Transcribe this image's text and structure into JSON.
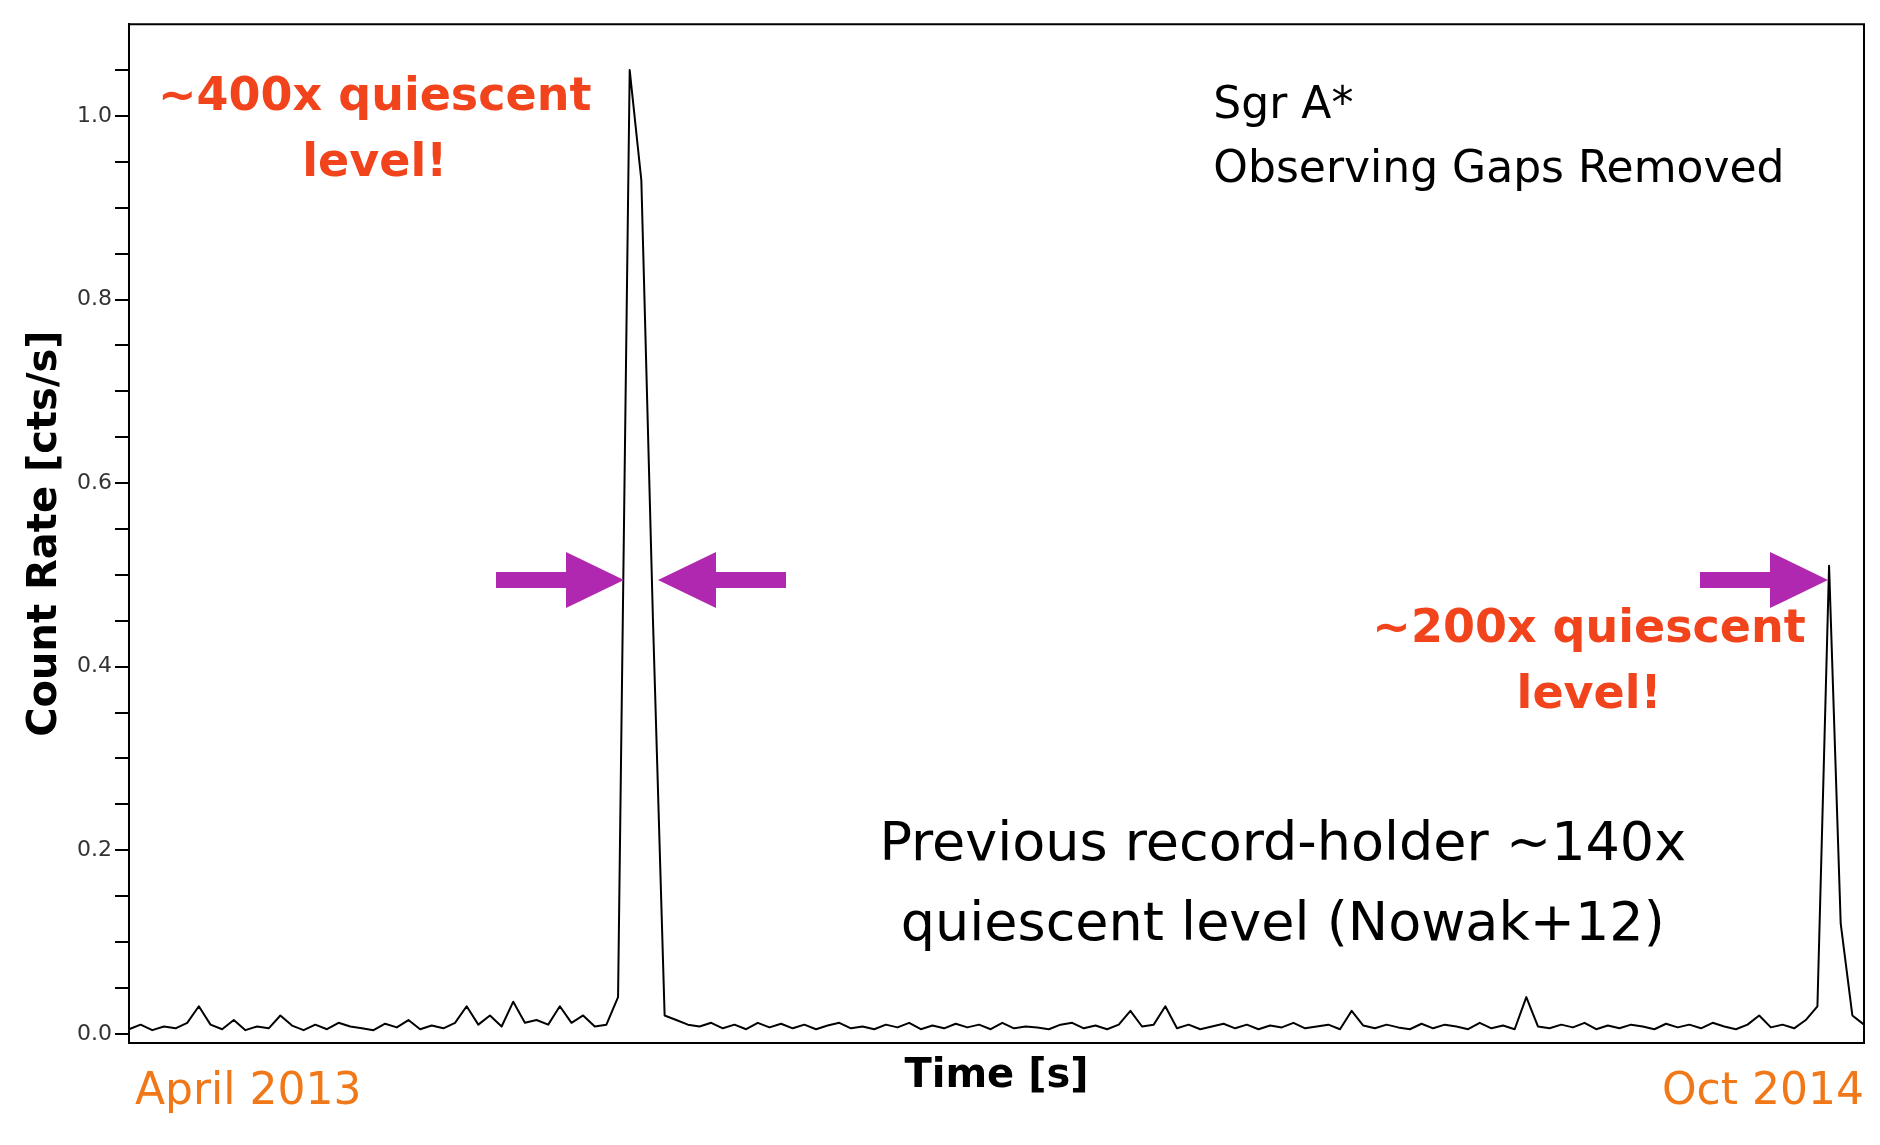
{
  "chart_data": {
    "type": "line",
    "xlabel": "Time [s]",
    "ylabel": "Count Rate [cts/s]",
    "color": "#000000",
    "categories": [
      null,
      null,
      null,
      null,
      null,
      null,
      null,
      null,
      null,
      null,
      null,
      null,
      null,
      null,
      null,
      null,
      null,
      null,
      null,
      null,
      null,
      null,
      null,
      null,
      null,
      null,
      null,
      null,
      null,
      null,
      null,
      null,
      null,
      null,
      null,
      null,
      null,
      null,
      null,
      null,
      null,
      null,
      null,
      null,
      null,
      null,
      null,
      null,
      null,
      null,
      null,
      null,
      null,
      null,
      null,
      null,
      null,
      null,
      null,
      null,
      null,
      null,
      null,
      null,
      null,
      null,
      null,
      null,
      null,
      null,
      null,
      null,
      null,
      null,
      null,
      null,
      null,
      null,
      null,
      null,
      null,
      null,
      null,
      null,
      null,
      null,
      null,
      null,
      null,
      null,
      null,
      null,
      null,
      null,
      null,
      null,
      null,
      null,
      null,
      null,
      null,
      null,
      null,
      null,
      null,
      null,
      null,
      null,
      null,
      null,
      null,
      null,
      null,
      null,
      null,
      null,
      null,
      null,
      null,
      null,
      null,
      null,
      null,
      null,
      null,
      null,
      null,
      null,
      null,
      null,
      null,
      null,
      null,
      null,
      null,
      null,
      null,
      null,
      null,
      null,
      null,
      null,
      null,
      null,
      null,
      null,
      null,
      null,
      null,
      null
    ],
    "values": [
      0.005,
      0.01,
      0.004,
      0.008,
      0.006,
      0.012,
      0.03,
      0.01,
      0.005,
      0.015,
      0.004,
      0.008,
      0.006,
      0.02,
      0.009,
      0.004,
      0.01,
      0.005,
      0.012,
      0.008,
      0.006,
      0.004,
      0.011,
      0.007,
      0.015,
      0.005,
      0.009,
      0.006,
      0.012,
      0.03,
      0.01,
      0.02,
      0.008,
      0.035,
      0.012,
      0.015,
      0.01,
      0.03,
      0.012,
      0.02,
      0.008,
      0.01,
      0.04,
      1.05,
      0.93,
      0.45,
      0.02,
      0.015,
      0.01,
      0.008,
      0.012,
      0.006,
      0.01,
      0.005,
      0.012,
      0.007,
      0.011,
      0.006,
      0.01,
      0.005,
      0.009,
      0.012,
      0.006,
      0.008,
      0.005,
      0.01,
      0.007,
      0.012,
      0.005,
      0.009,
      0.006,
      0.011,
      0.007,
      0.01,
      0.005,
      0.012,
      0.006,
      0.008,
      0.007,
      0.005,
      0.01,
      0.012,
      0.006,
      0.009,
      0.005,
      0.01,
      0.025,
      0.008,
      0.01,
      0.03,
      0.006,
      0.01,
      0.005,
      0.008,
      0.011,
      0.006,
      0.01,
      0.005,
      0.009,
      0.007,
      0.012,
      0.006,
      0.008,
      0.01,
      0.005,
      0.025,
      0.009,
      0.006,
      0.01,
      0.007,
      0.005,
      0.011,
      0.006,
      0.01,
      0.008,
      0.005,
      0.012,
      0.006,
      0.009,
      0.005,
      0.04,
      0.008,
      0.006,
      0.01,
      0.007,
      0.012,
      0.005,
      0.009,
      0.006,
      0.01,
      0.008,
      0.005,
      0.011,
      0.007,
      0.01,
      0.006,
      0.012,
      0.008,
      0.005,
      0.01,
      0.02,
      0.007,
      0.01,
      0.006,
      0.015,
      0.03,
      0.51,
      0.12,
      0.02,
      0.01
    ],
    "ylim": [
      -0.01,
      1.1
    ],
    "yticks": [
      {
        "value": 0,
        "label": "0.0"
      },
      {
        "value": 0.05,
        "label": null
      },
      {
        "value": 0.1,
        "label": null
      },
      {
        "value": 0.15,
        "label": null
      },
      0.2,
      {
        "value": 0.25,
        "label": null
      },
      {
        "value": 0.3,
        "label": null
      },
      {
        "value": 0.35,
        "label": null
      },
      0.4,
      {
        "value": 0.45,
        "label": null
      },
      {
        "value": 0.5,
        "label": null
      },
      {
        "value": 0.55,
        "label": null
      },
      0.6,
      {
        "value": 0.65,
        "label": null
      },
      {
        "value": 0.7,
        "label": null
      },
      {
        "value": 0.75,
        "label": null
      },
      0.8,
      {
        "value": 0.85,
        "label": null
      },
      {
        "value": 0.9,
        "label": null
      },
      {
        "value": 0.95,
        "label": null
      },
      {
        "value": 1,
        "label": "1.0"
      },
      {
        "value": 1.05,
        "label": null
      }
    ],
    "tick_labels": "y",
    "grid": false,
    "legend": false,
    "marker": "none",
    "line_style": "solid",
    "annotations": [
      "~400x quiescent\nlevel!",
      "~200x quiescent\nlevel!",
      "Sgr A*",
      "Observing Gaps Removed",
      "Previous record-holder ~140x\nquiescent level (Nowak+12)",
      "April 2013",
      "Oct 2014"
    ]
  }
}
